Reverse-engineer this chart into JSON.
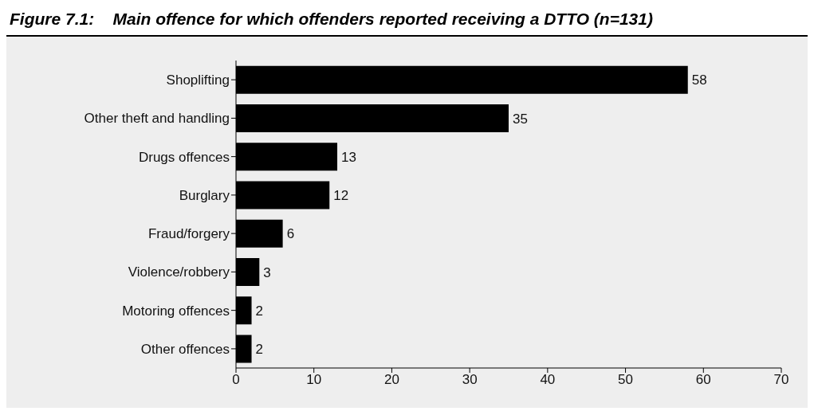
{
  "chart_data": {
    "type": "bar",
    "orientation": "horizontal",
    "title": "Figure 7.1:    Main offence for which offenders reported receiving a DTTO (n=131)",
    "categories": [
      "Shoplifting",
      "Other theft and handling",
      "Drugs offences",
      "Burglary",
      "Fraud/forgery",
      "Violence/robbery",
      "Motoring offences",
      "Other offences"
    ],
    "values": [
      58,
      35,
      13,
      12,
      6,
      3,
      2,
      2
    ],
    "color": "#000000",
    "xlim": [
      0,
      70
    ],
    "xticks": [
      0,
      10,
      20,
      30,
      40,
      50,
      60,
      70
    ],
    "grid": false,
    "data_labels": true
  }
}
